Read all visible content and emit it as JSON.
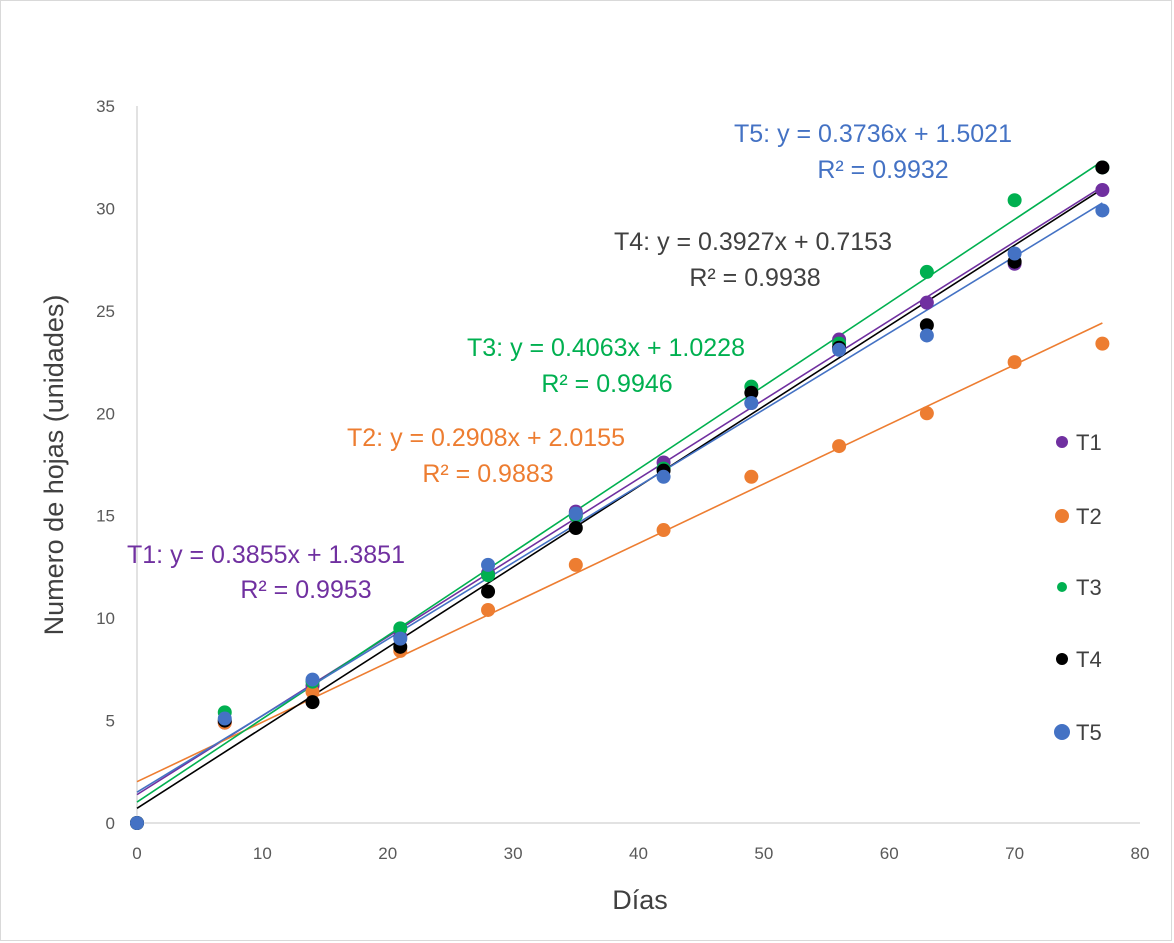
{
  "chart_data": {
    "type": "scatter",
    "xlabel": "Días",
    "ylabel": "Numero de hojas (unidades)",
    "xlim": [
      0,
      80
    ],
    "ylim": [
      0,
      35
    ],
    "x_ticks": [
      0,
      10,
      20,
      30,
      40,
      50,
      60,
      70,
      80
    ],
    "y_ticks": [
      0,
      5,
      10,
      15,
      20,
      25,
      30,
      35
    ],
    "grid": false,
    "legend_position": "right",
    "x": [
      0,
      7,
      14,
      21,
      28,
      35,
      42,
      49,
      56,
      63,
      70,
      77
    ],
    "series": [
      {
        "name": "T1",
        "color": "#7030a0",
        "values": [
          0,
          4.9,
          6.7,
          9.1,
          12.2,
          15.2,
          17.6,
          20.5,
          23.6,
          25.4,
          27.3,
          30.9
        ],
        "trendline": {
          "slope": 0.3855,
          "intercept": 1.3851,
          "equation": "T1: y = 0.3855x + 1.3851",
          "r2": "R² = 0.9953"
        }
      },
      {
        "name": "T2",
        "color": "#ed7d31",
        "values": [
          0,
          4.9,
          6.4,
          8.4,
          10.4,
          12.6,
          14.3,
          16.9,
          18.4,
          20.0,
          22.5,
          23.4
        ],
        "trendline": {
          "slope": 0.2908,
          "intercept": 2.0155,
          "equation": "T2: y = 0.2908x + 2.0155",
          "r2": "R² = 0.9883"
        }
      },
      {
        "name": "T3",
        "color": "#00b050",
        "values": [
          0,
          5.4,
          6.9,
          9.5,
          12.1,
          15.0,
          17.3,
          21.3,
          23.4,
          26.9,
          30.4,
          32.0
        ],
        "trendline": {
          "slope": 0.4063,
          "intercept": 1.0228,
          "equation": "T3: y = 0.4063x + 1.0228",
          "r2": "R² = 0.9946"
        }
      },
      {
        "name": "T4",
        "color": "#000000",
        "values": [
          0,
          5.0,
          5.9,
          8.6,
          11.3,
          14.4,
          17.2,
          21.0,
          23.2,
          24.3,
          27.4,
          32.0
        ],
        "trendline": {
          "slope": 0.3927,
          "intercept": 0.7153,
          "equation": "T4: y = 0.3927x + 0.7153",
          "r2": "R² = 0.9938"
        }
      },
      {
        "name": "T5",
        "color": "#4472c4",
        "values": [
          0,
          5.1,
          7.0,
          9.0,
          12.6,
          15.1,
          16.9,
          20.5,
          23.1,
          23.8,
          27.8,
          29.9
        ],
        "trendline": {
          "slope": 0.3736,
          "intercept": 1.5021,
          "equation": "T5: y = 0.3736x + 1.5021",
          "r2": "R² = 0.9932"
        }
      }
    ],
    "annotation_colors": {
      "T1": "#7030a0",
      "T2": "#ed7d31",
      "T3": "#00b050",
      "T4": "#404040",
      "T5": "#4472c4"
    }
  }
}
